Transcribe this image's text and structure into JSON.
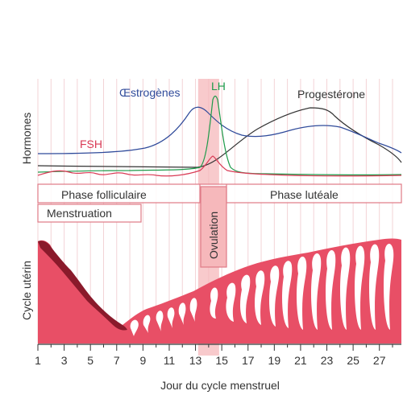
{
  "diagram": {
    "y_label_top": "Hormones",
    "y_label_bottom": "Cycle utérin",
    "x_label": "Jour du cycle menstruel",
    "x_ticks": [
      "1",
      "3",
      "5",
      "7",
      "9",
      "11",
      "13",
      "15",
      "17",
      "19",
      "21",
      "23",
      "25",
      "27"
    ],
    "day_range": [
      1,
      28
    ],
    "ovulation_days": [
      13.2,
      14.8
    ],
    "hormones": [
      {
        "name": "Œstrogènes",
        "color": "#2f4a9a"
      },
      {
        "name": "LH",
        "color": "#1e9a4a"
      },
      {
        "name": "Progestérone",
        "color": "#333333"
      },
      {
        "name": "FSH",
        "color": "#d93a55"
      }
    ],
    "phases": {
      "follicular": "Phase folliculaire",
      "luteal": "Phase lutéale",
      "menstruation": "Menstruation",
      "ovulation": "Ovulation"
    },
    "colors": {
      "phase_border": "#e07a86",
      "grid": "#f3d3d6",
      "ovulation_band": "#f6b8bb",
      "uterus": "#e84f66",
      "uterus_dark": "#8a1a2b"
    }
  }
}
